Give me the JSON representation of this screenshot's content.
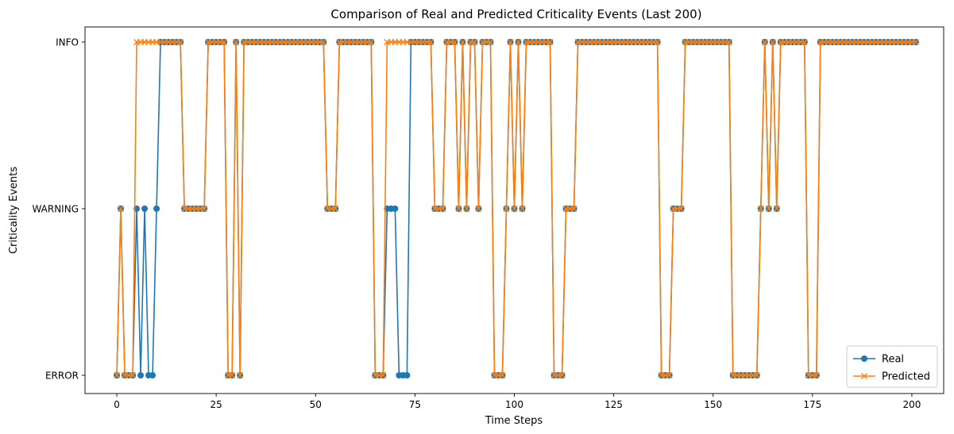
{
  "chart_data": {
    "type": "line",
    "title": "Comparison of Real and Predicted Criticality Events (Last 200)",
    "xlabel": "Time Steps",
    "ylabel": "Criticality Events",
    "xlim": [
      -8,
      208
    ],
    "xticks": [
      0,
      25,
      50,
      75,
      100,
      125,
      150,
      175,
      200
    ],
    "ycategories": [
      "ERROR",
      "WARNING",
      "INFO"
    ],
    "grid": false,
    "legend": "lower-right",
    "series": [
      {
        "name": "Real",
        "color": "#1f77b4",
        "marker": "circle",
        "values": [
          0,
          1,
          0,
          0,
          0,
          1,
          0,
          1,
          0,
          0,
          1,
          2,
          2,
          2,
          2,
          2,
          2,
          1,
          1,
          1,
          1,
          1,
          1,
          2,
          2,
          2,
          2,
          2,
          0,
          0,
          2,
          0,
          2,
          2,
          2,
          2,
          2,
          2,
          2,
          2,
          2,
          2,
          2,
          2,
          2,
          2,
          2,
          2,
          2,
          2,
          2,
          2,
          2,
          1,
          1,
          1,
          2,
          2,
          2,
          2,
          2,
          2,
          2,
          2,
          2,
          0,
          0,
          0,
          1,
          1,
          1,
          0,
          0,
          0,
          2,
          2,
          2,
          2,
          2,
          2,
          1,
          1,
          1,
          2,
          2,
          2,
          1,
          2,
          1,
          2,
          2,
          1,
          2,
          2,
          2,
          0,
          0,
          0,
          1,
          2,
          1,
          2,
          1,
          2,
          2,
          2,
          2,
          2,
          2,
          2,
          0,
          0,
          0,
          1,
          1,
          1,
          2,
          2,
          2,
          2,
          2,
          2,
          2,
          2,
          2,
          2,
          2,
          2,
          2,
          2,
          2,
          2,
          2,
          2,
          2,
          2,
          2,
          0,
          0,
          0,
          1,
          1,
          1,
          2,
          2,
          2,
          2,
          2,
          2,
          2,
          2,
          2,
          2,
          2,
          2,
          0,
          0,
          0,
          0,
          0,
          0,
          0,
          1,
          2,
          1,
          2,
          1,
          2,
          2,
          2,
          2,
          2,
          2,
          2,
          0,
          0,
          0,
          2,
          2,
          2,
          2,
          2,
          2,
          2,
          2,
          2,
          2,
          2,
          2,
          2,
          2,
          2,
          2,
          2,
          2,
          2,
          2,
          2,
          2,
          2,
          2,
          2
        ]
      },
      {
        "name": "Predicted",
        "color": "#ff7f0e",
        "marker": "x",
        "values": [
          0,
          1,
          0,
          0,
          0,
          2,
          2,
          2,
          2,
          2,
          2,
          2,
          2,
          2,
          2,
          2,
          2,
          1,
          1,
          1,
          1,
          1,
          1,
          2,
          2,
          2,
          2,
          2,
          0,
          0,
          2,
          0,
          2,
          2,
          2,
          2,
          2,
          2,
          2,
          2,
          2,
          2,
          2,
          2,
          2,
          2,
          2,
          2,
          2,
          2,
          2,
          2,
          2,
          1,
          1,
          1,
          2,
          2,
          2,
          2,
          2,
          2,
          2,
          2,
          2,
          0,
          0,
          0,
          2,
          2,
          2,
          2,
          2,
          2,
          2,
          2,
          2,
          2,
          2,
          2,
          1,
          1,
          1,
          2,
          2,
          2,
          1,
          2,
          1,
          2,
          2,
          1,
          2,
          2,
          2,
          0,
          0,
          0,
          1,
          2,
          1,
          2,
          1,
          2,
          2,
          2,
          2,
          2,
          2,
          2,
          0,
          0,
          0,
          1,
          1,
          1,
          2,
          2,
          2,
          2,
          2,
          2,
          2,
          2,
          2,
          2,
          2,
          2,
          2,
          2,
          2,
          2,
          2,
          2,
          2,
          2,
          2,
          0,
          0,
          0,
          1,
          1,
          1,
          2,
          2,
          2,
          2,
          2,
          2,
          2,
          2,
          2,
          2,
          2,
          2,
          0,
          0,
          0,
          0,
          0,
          0,
          0,
          1,
          2,
          1,
          2,
          1,
          2,
          2,
          2,
          2,
          2,
          2,
          2,
          0,
          0,
          0,
          2,
          2,
          2,
          2,
          2,
          2,
          2,
          2,
          2,
          2,
          2,
          2,
          2,
          2,
          2,
          2,
          2,
          2,
          2,
          2,
          2,
          2,
          2,
          2,
          2
        ]
      }
    ]
  }
}
